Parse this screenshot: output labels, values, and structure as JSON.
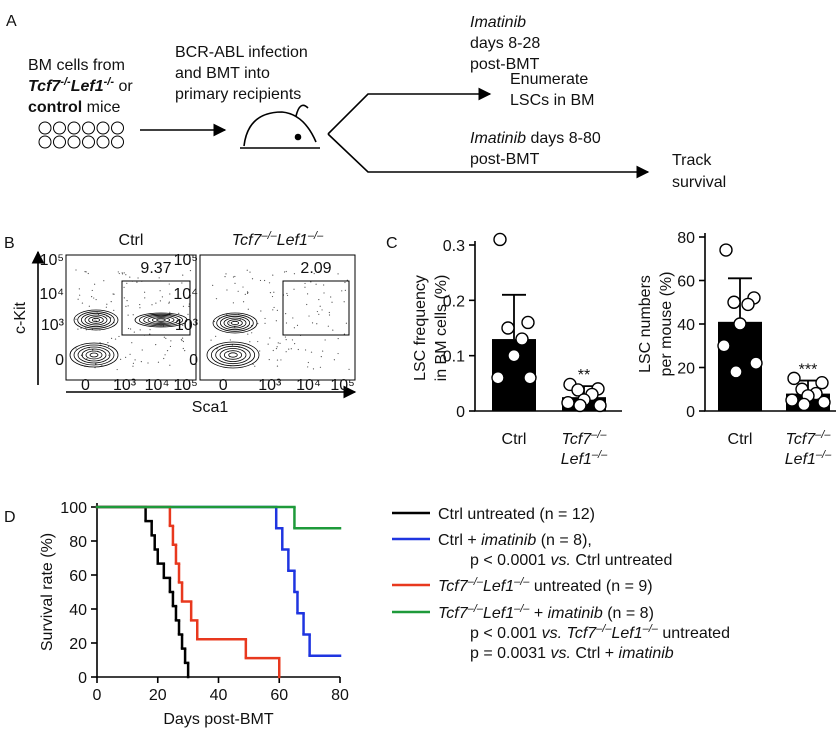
{
  "panel_labels": [
    "A",
    "B",
    "C",
    "D"
  ],
  "schematic": {
    "source": [
      [
        "BM cells from"
      ],
      [
        {
          "t": "Tcf7",
          "i": true,
          "b": true
        },
        {
          "t": "-/-",
          "sup": true,
          "i": true,
          "b": true
        },
        {
          "t": "Lef1",
          "i": true,
          "b": true
        },
        {
          "t": "-/-",
          "sup": true,
          "i": true,
          "b": true
        },
        " or"
      ],
      [
        {
          "t": "control",
          "b": true
        },
        " mice"
      ]
    ],
    "infection": [
      [
        "BCR-ABL infection"
      ],
      [
        "and BMT into"
      ],
      [
        "primary recipients"
      ]
    ],
    "branch1_drug": [
      [
        {
          "t": "Imatinib",
          "i": true
        }
      ],
      [
        "days 8-28"
      ],
      [
        "post-BMT"
      ]
    ],
    "branch1_outcome": [
      [
        "Enumerate"
      ],
      [
        "LSCs in BM"
      ]
    ],
    "branch2_drug": [
      [
        {
          "t": "Imatinib",
          "i": true
        },
        " days 8-80"
      ],
      [
        "post-BMT"
      ]
    ],
    "branch2_outcome": [
      [
        "Track"
      ],
      [
        "survival"
      ]
    ]
  },
  "flow": {
    "panels": [
      {
        "title": [
          "Ctrl"
        ],
        "gate": "9.37"
      },
      {
        "title": [
          {
            "t": "Tcf7",
            "i": true
          },
          {
            "t": "–/–",
            "sup": true,
            "i": true
          },
          {
            "t": "Lef1",
            "i": true
          },
          {
            "t": "–/–",
            "sup": true,
            "i": true
          }
        ],
        "gate": "2.09"
      }
    ],
    "y_label": "c-Kit",
    "x_label": "Sca1",
    "x_ticks": [
      "0",
      "10³",
      "10⁴",
      "10⁵"
    ],
    "y_ticks": [
      "0",
      "10³",
      "10⁴",
      "10⁵"
    ]
  },
  "chart_data": [
    {
      "type": "bar",
      "ylabel": [
        "LSC frequency",
        "in BM cells (%)"
      ],
      "categories": [
        [
          [
            "Ctrl"
          ]
        ],
        [
          [
            {
              "t": "Tcf7",
              "i": true
            },
            {
              "t": "–/–",
              "sup": true,
              "i": true
            }
          ],
          [
            {
              "t": "Lef1",
              "i": true
            },
            {
              "t": "–/–",
              "sup": true,
              "i": true
            }
          ]
        ]
      ],
      "series": [
        {
          "color": "#000000",
          "values": [
            0.13,
            0.025
          ],
          "errors": [
            0.08,
            0.02
          ],
          "points": [
            [
              0.31,
              0.16,
              0.15,
              0.13,
              0.1,
              0.06,
              0.06
            ],
            [
              0.048,
              0.04,
              0.038,
              0.03,
              0.02,
              0.015,
              0.01,
              0.01
            ]
          ]
        }
      ],
      "significance": [
        null,
        "**"
      ],
      "significance_color": "#e0241b",
      "ylim": [
        0,
        0.3
      ],
      "yticks": [
        0,
        0.1,
        0.2,
        0.3
      ]
    },
    {
      "type": "bar",
      "ylabel": [
        "LSC numbers",
        "per mouse (%)"
      ],
      "categories": [
        [
          [
            "Ctrl"
          ]
        ],
        [
          [
            {
              "t": "Tcf7",
              "i": true
            },
            {
              "t": "–/–",
              "sup": true,
              "i": true
            }
          ],
          [
            {
              "t": "Lef1",
              "i": true
            },
            {
              "t": "–/–",
              "sup": true,
              "i": true
            }
          ]
        ]
      ],
      "series": [
        {
          "color": "#000000",
          "values": [
            41,
            8
          ],
          "errors": [
            20,
            6
          ],
          "points": [
            [
              74,
              52,
              50,
              49,
              40,
              30,
              22,
              18
            ],
            [
              15,
              13,
              10,
              8,
              7,
              5,
              4,
              3
            ]
          ]
        }
      ],
      "significance": [
        null,
        "***"
      ],
      "significance_color": "#e0241b",
      "ylim": [
        0,
        80
      ],
      "yticks": [
        0,
        20,
        40,
        60,
        80
      ]
    },
    {
      "type": "step",
      "xlabel": "Days post-BMT",
      "ylabel": "Survival rate (%)",
      "xlim": [
        0,
        80
      ],
      "xticks": [
        0,
        20,
        40,
        60,
        80
      ],
      "ylim": [
        0,
        100
      ],
      "yticks": [
        0,
        20,
        40,
        60,
        80,
        100
      ],
      "series": [
        {
          "name": [
            [
              "Ctrl untreated (n = 12)"
            ]
          ],
          "color": "#000000",
          "x": [
            0,
            16,
            18,
            19,
            20,
            22,
            24,
            25,
            26,
            27,
            28,
            29,
            30
          ],
          "values": [
            100,
            91.7,
            83.3,
            75,
            66.7,
            58.3,
            50,
            41.7,
            33.3,
            25,
            16.7,
            8.3,
            0
          ]
        },
        {
          "name": [
            [
              "Ctrl + ",
              {
                "t": "imatinib",
                "i": true
              },
              " (n = 8),"
            ],
            [
              "p < 0.0001 ",
              {
                "t": "vs.",
                "i": true
              },
              " Ctrl untreated"
            ]
          ],
          "color": "#1f35e0",
          "x": [
            0,
            59,
            61,
            63,
            65,
            66,
            68,
            70
          ],
          "values": [
            100,
            87.5,
            75,
            62.5,
            50,
            37.5,
            25,
            12.5
          ]
        },
        {
          "name": [
            [
              {
                "t": "Tcf7",
                "i": true
              },
              {
                "t": "–/–",
                "sup": true,
                "i": true
              },
              {
                "t": "Lef1",
                "i": true
              },
              {
                "t": "–/–",
                "sup": true,
                "i": true
              },
              " untreated (n = 9)"
            ]
          ],
          "color": "#e8381e",
          "x": [
            0,
            24,
            25,
            26,
            27,
            28,
            31,
            33,
            49,
            60
          ],
          "values": [
            100,
            88.9,
            77.8,
            66.7,
            55.6,
            44.4,
            33.3,
            22.2,
            11.1,
            0
          ]
        },
        {
          "name": [
            [
              {
                "t": "Tcf7",
                "i": true
              },
              {
                "t": "–/–",
                "sup": true,
                "i": true
              },
              {
                "t": "Lef1",
                "i": true
              },
              {
                "t": "–/–",
                "sup": true,
                "i": true
              },
              " + ",
              {
                "t": "imatinib",
                "i": true
              },
              " (n = 8)"
            ],
            [
              "p < 0.001 ",
              {
                "t": "vs.",
                "i": true
              },
              " ",
              {
                "t": "Tcf7",
                "i": true
              },
              {
                "t": "–/–",
                "sup": true,
                "i": true
              },
              {
                "t": "Lef1",
                "i": true
              },
              {
                "t": "–/–",
                "sup": true,
                "i": true
              },
              " untreated"
            ],
            [
              "p = 0.0031 ",
              {
                "t": "vs.",
                "i": true
              },
              " Ctrl + ",
              {
                "t": "imatinib",
                "i": true
              }
            ]
          ],
          "color": "#1e9a3a",
          "x": [
            0,
            65
          ],
          "values": [
            100,
            87.5
          ]
        }
      ]
    }
  ]
}
